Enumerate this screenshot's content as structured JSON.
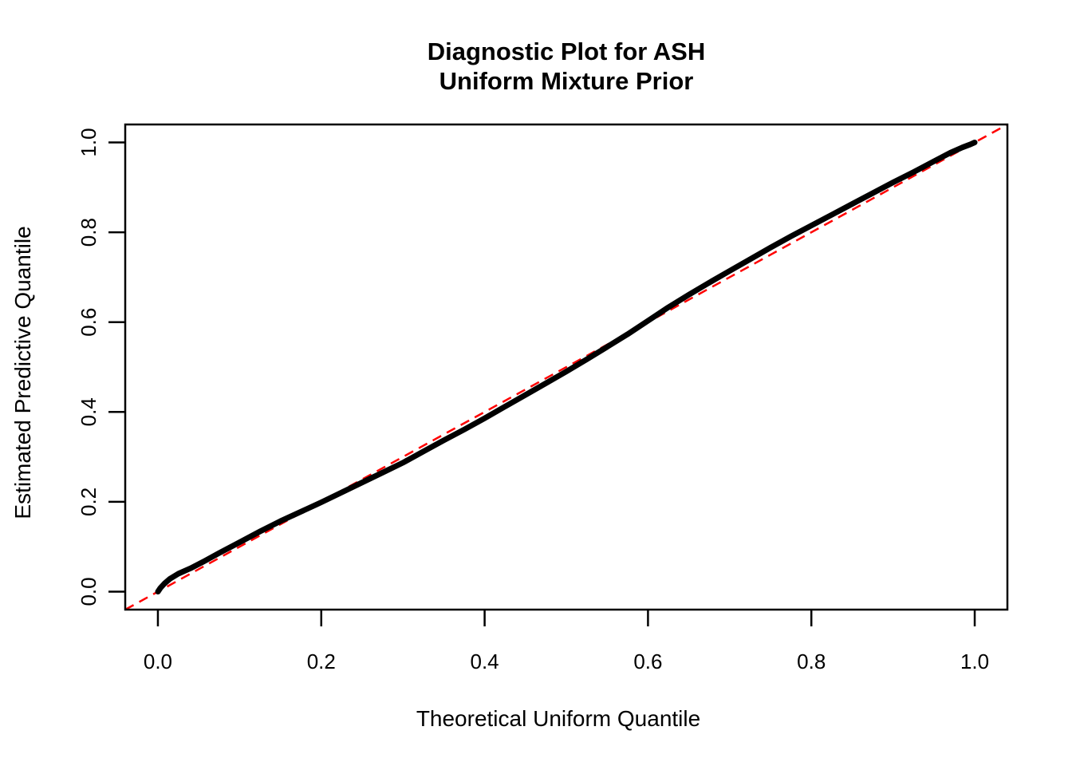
{
  "chart_data": {
    "type": "line",
    "subtype": "qq-diagnostic-plot",
    "title_lines": [
      "Diagnostic Plot for ASH",
      "Uniform Mixture Prior"
    ],
    "xlabel": "Theoretical Uniform Quantile",
    "ylabel": "Estimated Predictive Quantile",
    "xlim": [
      -0.04,
      1.04
    ],
    "ylim": [
      -0.04,
      1.04
    ],
    "x_ticks": [
      0.0,
      0.2,
      0.4,
      0.6,
      0.8,
      1.0
    ],
    "y_ticks": [
      0.0,
      0.2,
      0.4,
      0.6,
      0.8,
      1.0
    ],
    "x_tick_labels": [
      "0.0",
      "0.2",
      "0.4",
      "0.6",
      "0.8",
      "1.0"
    ],
    "y_tick_labels": [
      "0.0",
      "0.2",
      "0.4",
      "0.6",
      "0.8",
      "1.0"
    ],
    "grid": false,
    "legend": "none",
    "background_color": "#ffffff",
    "box_color": "#000000",
    "series": [
      {
        "name": "estimated-vs-theoretical-quantiles",
        "style": "solid-thick",
        "color": "#000000",
        "points": [
          [
            0.0,
            0.0
          ],
          [
            0.003,
            0.008
          ],
          [
            0.008,
            0.018
          ],
          [
            0.015,
            0.029
          ],
          [
            0.025,
            0.04
          ],
          [
            0.04,
            0.052
          ],
          [
            0.055,
            0.066
          ],
          [
            0.075,
            0.086
          ],
          [
            0.1,
            0.11
          ],
          [
            0.125,
            0.134
          ],
          [
            0.15,
            0.157
          ],
          [
            0.175,
            0.178
          ],
          [
            0.2,
            0.199
          ],
          [
            0.225,
            0.221
          ],
          [
            0.25,
            0.243
          ],
          [
            0.275,
            0.265
          ],
          [
            0.3,
            0.287
          ],
          [
            0.325,
            0.312
          ],
          [
            0.35,
            0.337
          ],
          [
            0.375,
            0.361
          ],
          [
            0.4,
            0.386
          ],
          [
            0.425,
            0.412
          ],
          [
            0.45,
            0.438
          ],
          [
            0.475,
            0.464
          ],
          [
            0.5,
            0.49
          ],
          [
            0.525,
            0.517
          ],
          [
            0.55,
            0.545
          ],
          [
            0.575,
            0.573
          ],
          [
            0.6,
            0.603
          ],
          [
            0.625,
            0.633
          ],
          [
            0.65,
            0.661
          ],
          [
            0.675,
            0.688
          ],
          [
            0.7,
            0.714
          ],
          [
            0.725,
            0.74
          ],
          [
            0.75,
            0.766
          ],
          [
            0.775,
            0.791
          ],
          [
            0.8,
            0.815
          ],
          [
            0.825,
            0.839
          ],
          [
            0.85,
            0.863
          ],
          [
            0.875,
            0.887
          ],
          [
            0.9,
            0.911
          ],
          [
            0.925,
            0.934
          ],
          [
            0.95,
            0.958
          ],
          [
            0.97,
            0.977
          ],
          [
            0.985,
            0.989
          ],
          [
            0.995,
            0.996
          ],
          [
            1.0,
            1.0
          ]
        ]
      },
      {
        "name": "identity-reference-line",
        "style": "dashed",
        "color": "#FF0000",
        "points": [
          [
            -0.04,
            -0.04
          ],
          [
            1.04,
            1.04
          ]
        ]
      }
    ]
  }
}
